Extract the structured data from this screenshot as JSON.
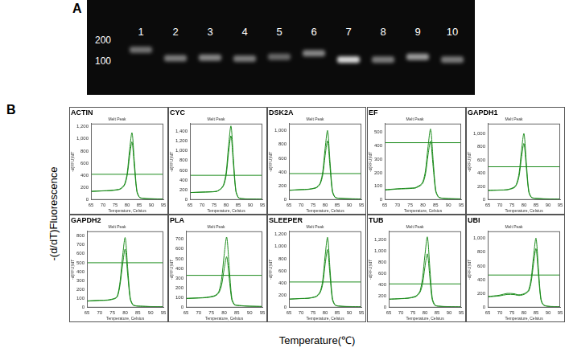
{
  "panel_a": {
    "label": "A",
    "ladder": [
      200,
      100
    ],
    "lanes": [
      {
        "label": "1",
        "band_size": 145,
        "intensity": 0.5
      },
      {
        "label": "2",
        "band_size": 110,
        "intensity": 0.55
      },
      {
        "label": "3",
        "band_size": 112,
        "intensity": 0.6
      },
      {
        "label": "4",
        "band_size": 108,
        "intensity": 0.55
      },
      {
        "label": "5",
        "band_size": 115,
        "intensity": 0.45
      },
      {
        "label": "6",
        "band_size": 130,
        "intensity": 0.6
      },
      {
        "label": "7",
        "band_size": 105,
        "intensity": 1
      },
      {
        "label": "8",
        "band_size": 105,
        "intensity": 0.55
      },
      {
        "label": "9",
        "band_size": 115,
        "intensity": 0.7
      },
      {
        "label": "10",
        "band_size": 105,
        "intensity": 0.55
      }
    ]
  },
  "panel_b": {
    "label": "B",
    "y_label": "-(d/dT)Fluorescence",
    "x_label": "Temperature(℃)"
  },
  "chart_data": [
    {
      "type": "line",
      "title": "ACTIN",
      "subtitle": "Melt Peak",
      "x_label": "Temperature, Celsius",
      "y_label": "-d(RFU)/dT",
      "x": [
        65,
        70,
        73,
        76,
        77,
        78,
        79,
        80,
        81,
        82,
        83,
        84,
        85,
        86,
        87,
        88,
        90,
        95
      ],
      "series": [
        {
          "color": "#1d8c1d",
          "values": [
            140,
            150,
            155,
            170,
            180,
            210,
            265,
            435,
            815,
            1100,
            620,
            160,
            50,
            30,
            25,
            22,
            20,
            15
          ]
        },
        {
          "color": "#1d8c1d",
          "values": [
            140,
            148,
            152,
            165,
            175,
            200,
            250,
            400,
            710,
            950,
            540,
            140,
            45,
            28,
            24,
            20,
            18,
            14
          ]
        }
      ],
      "threshold": 420,
      "xlim": [
        65,
        95
      ],
      "xticks": [
        65,
        70,
        75,
        80,
        85,
        90,
        95
      ],
      "ylim": [
        0,
        1250
      ],
      "yticks": [
        0,
        200,
        400,
        600,
        800,
        1000,
        1200
      ],
      "grid": false
    },
    {
      "type": "line",
      "title": "CYC",
      "subtitle": "Melt Peak",
      "x_label": "Temperature, Celsius",
      "y_label": "-d(RFU)/dT",
      "x": [
        65,
        70,
        73,
        76,
        77,
        78,
        79,
        80,
        81,
        82,
        83,
        84,
        85,
        86,
        87,
        88,
        90,
        95
      ],
      "series": [
        {
          "color": "#1d8c1d",
          "values": [
            150,
            160,
            165,
            175,
            200,
            240,
            320,
            560,
            1100,
            1500,
            840,
            200,
            55,
            30,
            25,
            22,
            20,
            15
          ]
        },
        {
          "color": "#1d8c1d",
          "values": [
            150,
            158,
            162,
            172,
            198,
            230,
            300,
            500,
            960,
            1300,
            730,
            180,
            50,
            28,
            24,
            20,
            18,
            14
          ]
        }
      ],
      "threshold": 500,
      "xlim": [
        65,
        95
      ],
      "xticks": [
        65,
        70,
        75,
        80,
        85,
        90,
        95
      ],
      "ylim": [
        0,
        1550
      ],
      "yticks": [
        0,
        200,
        400,
        600,
        800,
        1000,
        1200,
        1400
      ],
      "grid": false
    },
    {
      "type": "line",
      "title": "DSK2A",
      "subtitle": "Melt Peak",
      "x_label": "Temperature, Celsius",
      "y_label": "-d(RFU)/dT",
      "x": [
        65,
        70,
        73,
        76,
        77,
        78,
        79,
        80,
        81,
        82,
        83,
        84,
        85,
        86,
        87,
        88,
        90,
        95
      ],
      "series": [
        {
          "color": "#1d8c1d",
          "values": [
            140,
            150,
            155,
            175,
            200,
            250,
            405,
            745,
            1000,
            560,
            140,
            45,
            28,
            24,
            22,
            20,
            18,
            14
          ]
        },
        {
          "color": "#1d8c1d",
          "values": [
            138,
            148,
            152,
            170,
            190,
            235,
            360,
            640,
            850,
            480,
            120,
            40,
            26,
            22,
            20,
            18,
            16,
            13
          ]
        }
      ],
      "threshold": 380,
      "xlim": [
        65,
        95
      ],
      "xticks": [
        65,
        70,
        75,
        80,
        85,
        90,
        95
      ],
      "ylim": [
        0,
        1100
      ],
      "yticks": [
        0,
        200,
        400,
        600,
        800,
        1000
      ],
      "grid": false
    },
    {
      "type": "line",
      "title": "EF",
      "subtitle": "Melt Peak",
      "x_label": "Temperature, Celsius",
      "y_label": "-d(RFU)/dT",
      "x": [
        65,
        70,
        73,
        76,
        77,
        78,
        79,
        80,
        81,
        82,
        83,
        84,
        85,
        86,
        87,
        88,
        90,
        95
      ],
      "series": [
        {
          "color": "#1d8c1d",
          "values": [
            75,
            82,
            85,
            88,
            90,
            100,
            110,
            135,
            215,
            390,
            520,
            295,
            75,
            25,
            15,
            12,
            10,
            8
          ]
        },
        {
          "color": "#1d8c1d",
          "values": [
            72,
            80,
            82,
            85,
            87,
            95,
            105,
            125,
            190,
            330,
            430,
            245,
            65,
            22,
            14,
            11,
            9,
            7
          ]
        }
      ],
      "threshold": 420,
      "xlim": [
        65,
        95
      ],
      "xticks": [
        65,
        70,
        75,
        80,
        85,
        90,
        95
      ],
      "ylim": [
        0,
        560
      ],
      "yticks": [
        0,
        100,
        200,
        300,
        400,
        500
      ],
      "grid": false
    },
    {
      "type": "line",
      "title": "GAPDH1",
      "subtitle": "Melt Peak",
      "x_label": "Temperature, Celsius",
      "y_label": "-d(RFU)/dT",
      "x": [
        65,
        70,
        73,
        76,
        77,
        78,
        79,
        80,
        81,
        82,
        83,
        84,
        85,
        86,
        87,
        88,
        90,
        95
      ],
      "series": [
        {
          "color": "#1d8c1d",
          "values": [
            145,
            150,
            155,
            195,
            250,
            405,
            745,
            1000,
            560,
            140,
            45,
            28,
            24,
            22,
            20,
            18,
            16,
            12
          ]
        },
        {
          "color": "#1d8c1d",
          "values": [
            142,
            148,
            152,
            185,
            235,
            360,
            640,
            850,
            480,
            120,
            40,
            26,
            22,
            20,
            18,
            16,
            14,
            11
          ]
        }
      ],
      "threshold": 500,
      "xlim": [
        65,
        95
      ],
      "xticks": [
        65,
        70,
        75,
        80,
        85,
        90,
        95
      ],
      "ylim": [
        0,
        1150
      ],
      "yticks": [
        0,
        200,
        400,
        600,
        800,
        1000
      ],
      "grid": false
    },
    {
      "type": "line",
      "title": "GAPDH2",
      "subtitle": "Melt Peak",
      "x_label": "Temperature, Celsius",
      "y_label": "-d(RFU)/dT",
      "x": [
        65,
        70,
        73,
        76,
        77,
        78,
        79,
        80,
        81,
        82,
        83,
        84,
        85,
        86,
        87,
        88,
        90,
        95
      ],
      "series": [
        {
          "color": "#1d8c1d",
          "values": [
            75,
            82,
            85,
            105,
            135,
            290,
            570,
            780,
            440,
            110,
            35,
            22,
            18,
            16,
            15,
            14,
            12,
            10
          ]
        },
        {
          "color": "#1d8c1d",
          "values": [
            72,
            80,
            82,
            100,
            125,
            255,
            480,
            650,
            365,
            95,
            30,
            20,
            16,
            15,
            14,
            13,
            11,
            9
          ]
        }
      ],
      "threshold": 500,
      "xlim": [
        65,
        95
      ],
      "xticks": [
        65,
        70,
        75,
        80,
        85,
        90,
        95
      ],
      "ylim": [
        0,
        850
      ],
      "yticks": [
        0,
        100,
        200,
        300,
        400,
        500,
        600,
        700,
        800
      ],
      "grid": false
    },
    {
      "type": "line",
      "title": "PLA",
      "subtitle": "Melt Peak",
      "x_label": "Temperature, Celsius",
      "y_label": "-d(RFU)/dT",
      "x": [
        65,
        70,
        73,
        76,
        77,
        78,
        79,
        80,
        81,
        82,
        83,
        84,
        85,
        86,
        87,
        88,
        90,
        95
      ],
      "series": [
        {
          "color": "#1d8c1d",
          "values": [
            95,
            100,
            105,
            120,
            135,
            170,
            290,
            535,
            720,
            410,
            100,
            35,
            25,
            22,
            20,
            18,
            15,
            12
          ]
        },
        {
          "color": "#1d8c1d",
          "values": [
            92,
            98,
            102,
            115,
            128,
            155,
            230,
            395,
            520,
            300,
            80,
            30,
            22,
            20,
            18,
            16,
            14,
            11
          ]
        }
      ],
      "threshold": 330,
      "xlim": [
        65,
        95
      ],
      "xticks": [
        65,
        70,
        75,
        80,
        85,
        90,
        95
      ],
      "ylim": [
        0,
        780
      ],
      "yticks": [
        0,
        100,
        200,
        300,
        400,
        500,
        600,
        700
      ],
      "grid": false
    },
    {
      "type": "line",
      "title": "SLEEPER",
      "subtitle": "Melt Peak",
      "x_label": "Temperature, Celsius",
      "y_label": "-d(RFU)/dT",
      "x": [
        65,
        70,
        73,
        76,
        77,
        78,
        79,
        80,
        81,
        82,
        83,
        84,
        85,
        86,
        87,
        88,
        90,
        95
      ],
      "series": [
        {
          "color": "#1d8c1d",
          "values": [
            140,
            150,
            155,
            180,
            210,
            270,
            445,
            850,
            1150,
            640,
            160,
            50,
            30,
            25,
            22,
            20,
            18,
            14
          ]
        },
        {
          "color": "#1d8c1d",
          "values": [
            138,
            148,
            152,
            175,
            200,
            250,
            390,
            710,
            950,
            530,
            135,
            45,
            28,
            24,
            20,
            18,
            16,
            13
          ]
        }
      ],
      "threshold": 420,
      "xlim": [
        65,
        95
      ],
      "xticks": [
        65,
        70,
        75,
        80,
        85,
        90,
        95
      ],
      "ylim": [
        0,
        1250
      ],
      "yticks": [
        0,
        200,
        400,
        600,
        800,
        1000,
        1200
      ],
      "grid": false
    },
    {
      "type": "line",
      "title": "TUB",
      "subtitle": "Melt Peak",
      "x_label": "Temperature, Celsius",
      "y_label": "-d(RFU)/dT",
      "x": [
        65,
        70,
        73,
        76,
        77,
        78,
        79,
        80,
        81,
        82,
        83,
        84,
        85,
        86,
        87,
        88,
        90,
        95
      ],
      "series": [
        {
          "color": "#1d8c1d",
          "values": [
            150,
            160,
            170,
            200,
            235,
            300,
            520,
            930,
            1250,
            720,
            180,
            55,
            30,
            25,
            22,
            20,
            18,
            14
          ]
        },
        {
          "color": "#1d8c1d",
          "values": [
            148,
            158,
            165,
            190,
            220,
            275,
            420,
            720,
            950,
            550,
            145,
            45,
            28,
            24,
            20,
            18,
            16,
            13
          ]
        }
      ],
      "threshold": 420,
      "xlim": [
        65,
        95
      ],
      "xticks": [
        65,
        70,
        75,
        80,
        85,
        90,
        95
      ],
      "ylim": [
        0,
        1350
      ],
      "yticks": [
        0,
        200,
        400,
        600,
        800,
        1000,
        1200
      ],
      "grid": false
    },
    {
      "type": "line",
      "title": "UBI",
      "subtitle": "Melt Peak",
      "x_label": "Temperature, Celsius",
      "y_label": "-d(RFU)/dT",
      "x": [
        65,
        70,
        73,
        76,
        77,
        78,
        79,
        80,
        81,
        82,
        83,
        84,
        85,
        86,
        87,
        88,
        90,
        95
      ],
      "series": [
        {
          "color": "#1d8c1d",
          "values": [
            160,
            180,
            205,
            200,
            190,
            185,
            190,
            200,
            220,
            260,
            420,
            745,
            1000,
            560,
            140,
            45,
            20,
            14
          ]
        },
        {
          "color": "#1d8c1d",
          "values": [
            155,
            170,
            190,
            188,
            180,
            175,
            180,
            190,
            210,
            240,
            370,
            640,
            850,
            480,
            120,
            40,
            18,
            12
          ]
        }
      ],
      "threshold": 470,
      "xlim": [
        65,
        95
      ],
      "xticks": [
        65,
        70,
        75,
        80,
        85,
        90,
        95
      ],
      "ylim": [
        0,
        1100
      ],
      "yticks": [
        0,
        200,
        400,
        600,
        800,
        1000
      ],
      "grid": false
    }
  ]
}
